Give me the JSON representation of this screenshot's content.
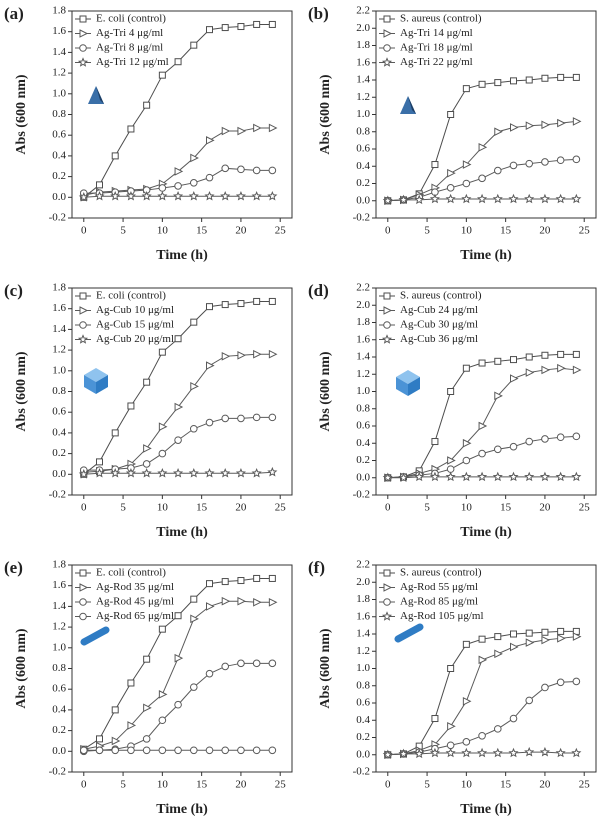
{
  "chart_data": [
    {
      "type": "line",
      "label": "(a)",
      "xlabel": "Time (h)",
      "ylabel": "Abs (600 nm)",
      "x": [
        0,
        2,
        4,
        6,
        8,
        10,
        12,
        14,
        16,
        18,
        20,
        22,
        24
      ],
      "xlim": [
        -1.5,
        26.5
      ],
      "xticks": [
        0,
        5,
        10,
        15,
        20,
        25
      ],
      "ylim": [
        -0.2,
        1.8
      ],
      "yticks": [
        -0.2,
        {
          "value": 0,
          "label": "0.0"
        },
        0.2,
        0.4,
        0.6,
        0.8,
        {
          "value": 1,
          "label": "1.0"
        },
        1.2,
        1.4,
        1.6,
        1.8
      ],
      "series": [
        {
          "name": "E. coli (control)",
          "marker": "square",
          "color": "#4d4d4d",
          "values": [
            0,
            0.12,
            0.4,
            0.66,
            0.89,
            1.18,
            1.31,
            1.47,
            1.62,
            1.64,
            1.65,
            1.67,
            1.67
          ]
        },
        {
          "name": "Ag-Tri 4 μg/ml",
          "marker": "triangle",
          "color": "#5a5a5a",
          "values": [
            0.02,
            0.05,
            0.06,
            0.07,
            0.08,
            0.13,
            0.25,
            0.38,
            0.55,
            0.64,
            0.64,
            0.67,
            0.67
          ]
        },
        {
          "name": "Ag-Tri 8 μg/ml",
          "marker": "circle",
          "color": "#5a5a5a",
          "values": [
            0.04,
            0.04,
            0.05,
            0.06,
            0.07,
            0.09,
            0.11,
            0.14,
            0.19,
            0.28,
            0.27,
            0.26,
            0.26
          ]
        },
        {
          "name": "Ag-Tri 12 μg/ml",
          "marker": "star",
          "color": "#5a5a5a",
          "values": [
            0,
            0.01,
            0.01,
            0.01,
            0.01,
            0.01,
            0.01,
            0.01,
            0.01,
            0.01,
            0.01,
            0.01,
            0.01
          ]
        }
      ]
    },
    {
      "type": "line",
      "label": "(b)",
      "xlabel": "Time (h)",
      "ylabel": "Abs (600 nm)",
      "x": [
        0,
        2,
        4,
        6,
        8,
        10,
        12,
        14,
        16,
        18,
        20,
        22,
        24
      ],
      "xlim": [
        -1.5,
        26.5
      ],
      "xticks": [
        0,
        5,
        10,
        15,
        20,
        25
      ],
      "ylim": [
        -0.2,
        2.2
      ],
      "yticks": [
        -0.2,
        {
          "value": 0,
          "label": "0.0"
        },
        0.2,
        0.4,
        0.6,
        0.8,
        {
          "value": 1,
          "label": "1.0"
        },
        1.2,
        1.4,
        1.6,
        1.8,
        {
          "value": 2,
          "label": "2.0"
        },
        2.2
      ],
      "series": [
        {
          "name": "S. aureus (control)",
          "marker": "square",
          "color": "#4d4d4d",
          "values": [
            0,
            0.01,
            0.08,
            0.42,
            1.0,
            1.3,
            1.35,
            1.37,
            1.39,
            1.4,
            1.42,
            1.43,
            1.43
          ]
        },
        {
          "name": "Ag-Tri 14 μg/ml",
          "marker": "triangle",
          "color": "#5a5a5a",
          "values": [
            0,
            0.01,
            0.07,
            0.15,
            0.32,
            0.42,
            0.62,
            0.8,
            0.85,
            0.87,
            0.88,
            0.9,
            0.92
          ]
        },
        {
          "name": "Ag-Tri 18 μg/ml",
          "marker": "circle",
          "color": "#5a5a5a",
          "values": [
            0,
            0.01,
            0.04,
            0.1,
            0.15,
            0.2,
            0.26,
            0.35,
            0.41,
            0.43,
            0.45,
            0.47,
            0.48
          ]
        },
        {
          "name": "Ag-Tri 22 μg/ml",
          "marker": "star",
          "color": "#5a5a5a",
          "values": [
            0,
            0.01,
            0.01,
            0.02,
            0.02,
            0.02,
            0.02,
            0.02,
            0.02,
            0.02,
            0.02,
            0.02,
            0.02
          ]
        }
      ]
    },
    {
      "type": "line",
      "label": "(c)",
      "xlabel": "Time (h)",
      "ylabel": "Abs (600 nm)",
      "x": [
        0,
        2,
        4,
        6,
        8,
        10,
        12,
        14,
        16,
        18,
        20,
        22,
        24
      ],
      "xlim": [
        -1.5,
        26.5
      ],
      "xticks": [
        0,
        5,
        10,
        15,
        20,
        25
      ],
      "ylim": [
        -0.2,
        1.8
      ],
      "yticks": [
        -0.2,
        {
          "value": 0,
          "label": "0.0"
        },
        0.2,
        0.4,
        0.6,
        0.8,
        {
          "value": 1,
          "label": "1.0"
        },
        1.2,
        1.4,
        1.6,
        1.8
      ],
      "series": [
        {
          "name": "E. coli (control)",
          "marker": "square",
          "color": "#4d4d4d",
          "values": [
            0,
            0.12,
            0.4,
            0.66,
            0.89,
            1.18,
            1.31,
            1.47,
            1.62,
            1.64,
            1.65,
            1.67,
            1.67
          ]
        },
        {
          "name": "Ag-Cub 10 μg/ml",
          "marker": "triangle",
          "color": "#5a5a5a",
          "values": [
            0.02,
            0.03,
            0.05,
            0.1,
            0.25,
            0.46,
            0.65,
            0.85,
            1.05,
            1.14,
            1.15,
            1.16,
            1.16
          ]
        },
        {
          "name": "Ag-Cub 15 μg/ml",
          "marker": "circle",
          "color": "#5a5a5a",
          "values": [
            0.04,
            0.04,
            0.05,
            0.06,
            0.1,
            0.2,
            0.33,
            0.44,
            0.5,
            0.54,
            0.54,
            0.55,
            0.55
          ]
        },
        {
          "name": "Ag-Cub 20 μg/ml",
          "marker": "star",
          "color": "#5a5a5a",
          "values": [
            0,
            0.01,
            0.01,
            0.01,
            0.01,
            0.01,
            0.01,
            0.01,
            0.01,
            0.01,
            0.01,
            0.01,
            0.02
          ]
        }
      ]
    },
    {
      "type": "line",
      "label": "(d)",
      "xlabel": "Time (h)",
      "ylabel": "Abs (600 nm)",
      "x": [
        0,
        2,
        4,
        6,
        8,
        10,
        12,
        14,
        16,
        18,
        20,
        22,
        24
      ],
      "xlim": [
        -1.5,
        26.5
      ],
      "xticks": [
        0,
        5,
        10,
        15,
        20,
        25
      ],
      "ylim": [
        -0.2,
        2.2
      ],
      "yticks": [
        -0.2,
        {
          "value": 0,
          "label": "0.0"
        },
        0.2,
        0.4,
        0.6,
        0.8,
        {
          "value": 1,
          "label": "1.0"
        },
        1.2,
        1.4,
        1.6,
        1.8,
        {
          "value": 2,
          "label": "2.0"
        },
        2.2
      ],
      "series": [
        {
          "name": "S. aureus (control)",
          "marker": "square",
          "color": "#4d4d4d",
          "values": [
            0,
            0.01,
            0.08,
            0.42,
            1.0,
            1.27,
            1.33,
            1.35,
            1.37,
            1.4,
            1.42,
            1.43,
            1.43
          ]
        },
        {
          "name": "Ag-Cub 24 μg/ml",
          "marker": "triangle",
          "color": "#5a5a5a",
          "values": [
            0,
            0.01,
            0.05,
            0.1,
            0.2,
            0.4,
            0.6,
            0.95,
            1.15,
            1.22,
            1.25,
            1.27,
            1.25
          ]
        },
        {
          "name": "Ag-Cub 30 μg/ml",
          "marker": "circle",
          "color": "#5a5a5a",
          "values": [
            0,
            0.01,
            0.03,
            0.05,
            0.1,
            0.2,
            0.28,
            0.33,
            0.36,
            0.42,
            0.45,
            0.47,
            0.48
          ]
        },
        {
          "name": "Ag-Cub 36 μg/ml",
          "marker": "star",
          "color": "#5a5a5a",
          "values": [
            0,
            0,
            0.01,
            0.01,
            0.01,
            0.01,
            0.01,
            0.01,
            0.01,
            0.01,
            0.01,
            0.01,
            0.01
          ]
        }
      ]
    },
    {
      "type": "line",
      "label": "(e)",
      "xlabel": "Time (h)",
      "ylabel": "Abs (600 nm)",
      "x": [
        0,
        2,
        4,
        6,
        8,
        10,
        12,
        14,
        16,
        18,
        20,
        22,
        24
      ],
      "xlim": [
        -1.5,
        26.5
      ],
      "xticks": [
        0,
        5,
        10,
        15,
        20,
        25
      ],
      "ylim": [
        -0.2,
        1.8
      ],
      "yticks": [
        -0.2,
        {
          "value": 0,
          "label": "0.0"
        },
        0.2,
        0.4,
        0.6,
        0.8,
        {
          "value": 1,
          "label": "1.0"
        },
        1.2,
        1.4,
        1.6,
        1.8
      ],
      "series": [
        {
          "name": "E. coli (control)",
          "marker": "square",
          "color": "#4d4d4d",
          "values": [
            0.02,
            0.12,
            0.4,
            0.66,
            0.89,
            1.18,
            1.31,
            1.47,
            1.62,
            1.64,
            1.65,
            1.67,
            1.67
          ]
        },
        {
          "name": "Ag-Rod 35 μg/ml",
          "marker": "triangle",
          "color": "#5a5a5a",
          "values": [
            0.02,
            0.05,
            0.1,
            0.25,
            0.42,
            0.55,
            0.9,
            1.28,
            1.4,
            1.45,
            1.45,
            1.44,
            1.44
          ]
        },
        {
          "name": "Ag-Rod 45 μg/ml",
          "marker": "circle",
          "color": "#5a5a5a",
          "values": [
            0,
            0.01,
            0.02,
            0.05,
            0.12,
            0.3,
            0.45,
            0.62,
            0.75,
            0.82,
            0.85,
            0.85,
            0.85
          ]
        },
        {
          "name": "Ag-Rod 65 μg/ml",
          "marker": "circle",
          "color": "#5a5a5a",
          "values": [
            0.01,
            0.01,
            0.01,
            0.01,
            0.01,
            0.01,
            0.01,
            0.01,
            0.01,
            0.01,
            0.01,
            0.01,
            0.01
          ]
        }
      ]
    },
    {
      "type": "line",
      "label": "(f)",
      "xlabel": "Time (h)",
      "ylabel": "Abs (600 nm)",
      "x": [
        0,
        2,
        4,
        6,
        8,
        10,
        12,
        14,
        16,
        18,
        20,
        22,
        24
      ],
      "xlim": [
        -1.5,
        26.5
      ],
      "xticks": [
        0,
        5,
        10,
        15,
        20,
        25
      ],
      "ylim": [
        -0.2,
        2.2
      ],
      "yticks": [
        -0.2,
        {
          "value": 0,
          "label": "0.0"
        },
        0.2,
        0.4,
        0.6,
        0.8,
        {
          "value": 1,
          "label": "1.0"
        },
        1.2,
        1.4,
        1.6,
        1.8,
        {
          "value": 2,
          "label": "2.0"
        },
        2.2
      ],
      "series": [
        {
          "name": "S. aureus (control)",
          "marker": "square",
          "color": "#4d4d4d",
          "values": [
            0,
            0.01,
            0.1,
            0.42,
            1.0,
            1.28,
            1.34,
            1.37,
            1.4,
            1.41,
            1.42,
            1.43,
            1.43
          ]
        },
        {
          "name": "Ag-Rod 55 μg/ml",
          "marker": "triangle",
          "color": "#5a5a5a",
          "values": [
            0,
            0.01,
            0.05,
            0.12,
            0.33,
            0.62,
            1.1,
            1.17,
            1.25,
            1.3,
            1.33,
            1.35,
            1.37
          ]
        },
        {
          "name": "Ag-Rod 85 μg/ml",
          "marker": "circle",
          "color": "#5a5a5a",
          "values": [
            0,
            0.01,
            0.03,
            0.07,
            0.11,
            0.15,
            0.22,
            0.3,
            0.42,
            0.63,
            0.78,
            0.84,
            0.85
          ]
        },
        {
          "name": "Ag-Rod 105 μg/ml",
          "marker": "star",
          "color": "#5a5a5a",
          "values": [
            0,
            0.01,
            0.01,
            0.02,
            0.02,
            0.02,
            0.02,
            0.02,
            0.02,
            0.03,
            0.03,
            0.02,
            0.02
          ]
        }
      ]
    }
  ]
}
